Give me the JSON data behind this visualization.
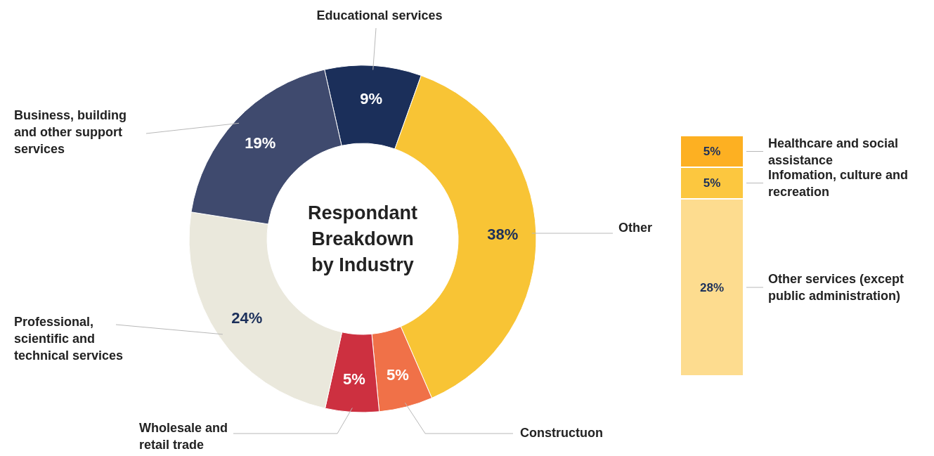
{
  "chart_data": [
    {
      "type": "donut",
      "title": "Respondant Breakdown by Industry",
      "categories": [
        "Educational services",
        "Other",
        "Constructuon",
        "Wholesale and retail trade",
        "Professional, scientific and technical services",
        "Business, building and other support services"
      ],
      "values": [
        9,
        38,
        5,
        5,
        24,
        19
      ],
      "colors": [
        "#1b2f5a",
        "#f8c435",
        "#f07148",
        "#cd3040",
        "#eae8dc",
        "#3f4a6e"
      ],
      "value_labels": [
        "9%",
        "38%",
        "5%",
        "5%",
        "24%",
        "19%"
      ]
    },
    {
      "type": "bar",
      "stacked": true,
      "categories": [
        null
      ],
      "series": [
        {
          "name": "Other services (except public administration)",
          "color": "#fddc8f",
          "values": [
            28
          ],
          "value_labels": [
            "28%"
          ]
        },
        {
          "name": "Infomation, culture and recreation",
          "color": "#fcc73f",
          "values": [
            5
          ],
          "value_labels": [
            "5%"
          ]
        },
        {
          "name": "Healthcare and social assistance",
          "color": "#fdb022",
          "values": [
            5
          ],
          "value_labels": [
            "5%"
          ]
        }
      ]
    }
  ]
}
